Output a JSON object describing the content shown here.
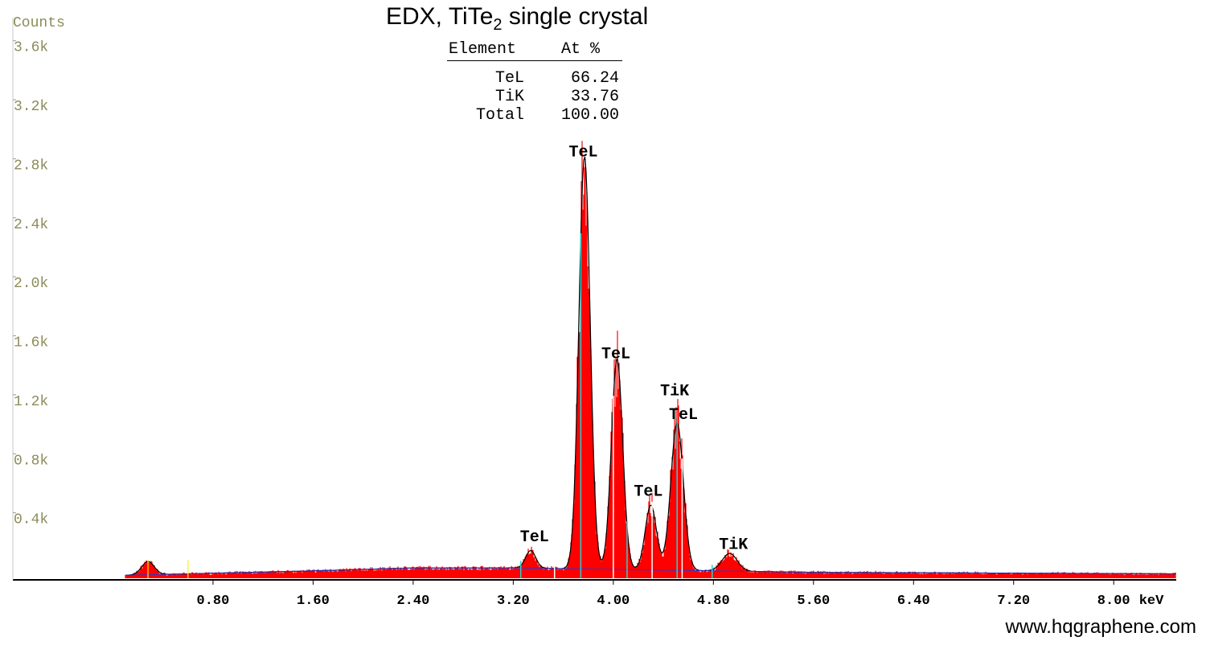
{
  "title": {
    "main": "EDX, TiTe",
    "sub": "2",
    "rest": " single crystal"
  },
  "table": {
    "header": [
      "Element",
      "At %"
    ],
    "rows": [
      {
        "element": "TeL",
        "value": "66.24"
      },
      {
        "element": "TiK",
        "value": "33.76"
      },
      {
        "element": "Total",
        "value": "100.00"
      }
    ]
  },
  "website": "www.hqgraphene.com",
  "colors": {
    "fill": "#ff0000",
    "outline": "#000000",
    "axis_text": "#8c8c5a",
    "background_line": "#3333cc",
    "marker": "#33cccc",
    "yellow_marker": "#ffee00"
  },
  "chart_data": {
    "type": "area",
    "ylabel": "Counts",
    "xunit": "keV",
    "xlim": [
      -0.8,
      8.5
    ],
    "ylim": [
      0,
      3.8
    ],
    "yticks": [
      "0.4k",
      "0.8k",
      "1.2k",
      "1.6k",
      "2.0k",
      "2.4k",
      "2.8k",
      "3.2k",
      "3.6k"
    ],
    "ytick_values": [
      0.4,
      0.8,
      1.2,
      1.6,
      2.0,
      2.4,
      2.8,
      3.2,
      3.6
    ],
    "xticks": [
      "0.80",
      "1.60",
      "2.40",
      "3.20",
      "4.00",
      "4.80",
      "5.60",
      "6.40",
      "7.20",
      "8.00"
    ],
    "xtick_values": [
      0.8,
      1.6,
      2.4,
      3.2,
      4.0,
      4.8,
      5.6,
      6.4,
      7.2,
      8.0
    ],
    "background": [
      [
        0.1,
        0.02
      ],
      [
        0.6,
        0.03
      ],
      [
        1.6,
        0.05
      ],
      [
        2.4,
        0.07
      ],
      [
        3.2,
        0.07
      ],
      [
        4.0,
        0.06
      ],
      [
        4.8,
        0.05
      ],
      [
        5.6,
        0.04
      ],
      [
        8.5,
        0.03
      ]
    ],
    "peaks": [
      {
        "center": 0.28,
        "height": 0.09,
        "width": 0.05
      },
      {
        "center": 3.34,
        "height": 0.12,
        "width": 0.04
      },
      {
        "center": 3.77,
        "height": 2.8,
        "width": 0.045
      },
      {
        "center": 4.03,
        "height": 1.43,
        "width": 0.045
      },
      {
        "center": 4.3,
        "height": 0.44,
        "width": 0.045
      },
      {
        "center": 4.51,
        "height": 1.0,
        "width": 0.05
      },
      {
        "center": 4.93,
        "height": 0.12,
        "width": 0.06
      }
    ],
    "series": [
      {
        "name": "TeL",
        "x": 3.34
      },
      {
        "name": "TeL",
        "x": 3.77
      },
      {
        "name": "TeL",
        "x": 4.03
      },
      {
        "name": "TeL",
        "x": 4.3
      },
      {
        "name": "TiK",
        "x": 4.51
      },
      {
        "name": "TeL",
        "x": 4.57
      },
      {
        "name": "TiK",
        "x": 4.93
      }
    ],
    "peak_labels": [
      {
        "text": "TeL",
        "x": 3.37,
        "y": 0.25
      },
      {
        "text": "TeL",
        "x": 3.76,
        "y": 2.86
      },
      {
        "text": "TeL",
        "x": 4.02,
        "y": 1.49
      },
      {
        "text": "TeL",
        "x": 4.28,
        "y": 0.56
      },
      {
        "text": "TiK",
        "x": 4.49,
        "y": 1.24
      },
      {
        "text": "TeL",
        "x": 4.56,
        "y": 1.08
      },
      {
        "text": "TiK",
        "x": 4.96,
        "y": 0.2
      }
    ],
    "markers": [
      3.26,
      3.53,
      3.74,
      4.0,
      4.11,
      4.31,
      4.51,
      4.55,
      4.79
    ],
    "yellow_markers": [
      0.28,
      0.6
    ]
  }
}
